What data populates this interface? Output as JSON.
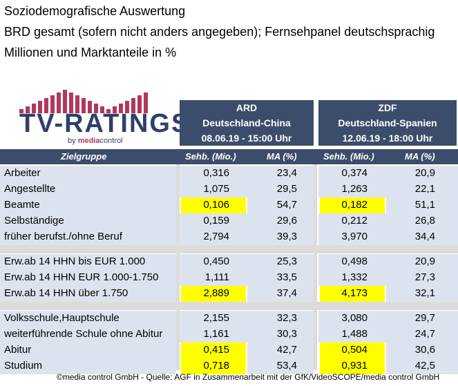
{
  "header": {
    "line1": "Soziodemografische Auswertung",
    "line2": "BRD gesamt (sofern nicht anders angegeben); Fernsehpanel deutschsprachig",
    "line3": "Millionen und Marktanteile in %"
  },
  "logo": {
    "main": "TV-RATINGS",
    "sub_prefix": "by ",
    "sub_brand": "media",
    "sub_suffix": "control"
  },
  "channels": [
    {
      "name": "ARD",
      "match": "Deutschland-China",
      "date": "08.06.19 - 15:00 Uhr"
    },
    {
      "name": "ZDF",
      "match": "Deutschland-Spanien",
      "date": "12.06.19 - 18:00 Uhr"
    }
  ],
  "columns": {
    "group": "Zielgruppe",
    "sehb": "Sehb. (Mio.)",
    "ma": "MA (%)"
  },
  "rows": [
    {
      "label": "Arbeiter",
      "ard_sehb": "0,316",
      "ard_ma": "23,4",
      "zdf_sehb": "0,374",
      "zdf_ma": "20,9"
    },
    {
      "label": "Angestellte",
      "ard_sehb": "1,075",
      "ard_ma": "29,5",
      "zdf_sehb": "1,263",
      "zdf_ma": "22,1"
    },
    {
      "label": "Beamte",
      "ard_sehb": "0,106",
      "ard_ma": "54,7",
      "zdf_sehb": "0,182",
      "zdf_ma": "51,1"
    },
    {
      "label": "Selbständige",
      "ard_sehb": "0,159",
      "ard_ma": "29,6",
      "zdf_sehb": "0,212",
      "zdf_ma": "26,8"
    },
    {
      "label": "früher berufst./ohne Beruf",
      "ard_sehb": "2,794",
      "ard_ma": "39,3",
      "zdf_sehb": "3,970",
      "zdf_ma": "34,4"
    },
    {
      "label": "Erw.ab 14 HHN bis EUR 1.000",
      "ard_sehb": "0,450",
      "ard_ma": "25,3",
      "zdf_sehb": "0,498",
      "zdf_ma": "20,9"
    },
    {
      "label": "Erw.ab 14 HHN EUR 1.000-1.750",
      "ard_sehb": "1,111",
      "ard_ma": "33,5",
      "zdf_sehb": "1,332",
      "zdf_ma": "27,3"
    },
    {
      "label": "Erw.ab 14 HHN über 1.750",
      "ard_sehb": "2,889",
      "ard_ma": "37,4",
      "zdf_sehb": "4,173",
      "zdf_ma": "32,1"
    },
    {
      "label": "Volksschule,Hauptschule",
      "ard_sehb": "2,155",
      "ard_ma": "32,3",
      "zdf_sehb": "3,080",
      "zdf_ma": "29,7"
    },
    {
      "label": "weiterführende Schule ohne Abitur",
      "ard_sehb": "1,161",
      "ard_ma": "30,3",
      "zdf_sehb": "1,488",
      "zdf_ma": "24,7"
    },
    {
      "label": "Abitur",
      "ard_sehb": "0,415",
      "ard_ma": "42,7",
      "zdf_sehb": "0,504",
      "zdf_ma": "30,6"
    },
    {
      "label": "Studium",
      "ard_sehb": "0,718",
      "ard_ma": "53,4",
      "zdf_sehb": "0,931",
      "zdf_ma": "42,5"
    }
  ],
  "footer": "©media control GmbH - Quelle: AGF in Zusammenarbeit mit der GfK/VideoSCOPE/media control GmbH",
  "colors": {
    "header_bg": "#3c4d6b",
    "shade": "#dde3ee",
    "highlight": "#ffff00",
    "logo_accent": "#b0385a"
  }
}
